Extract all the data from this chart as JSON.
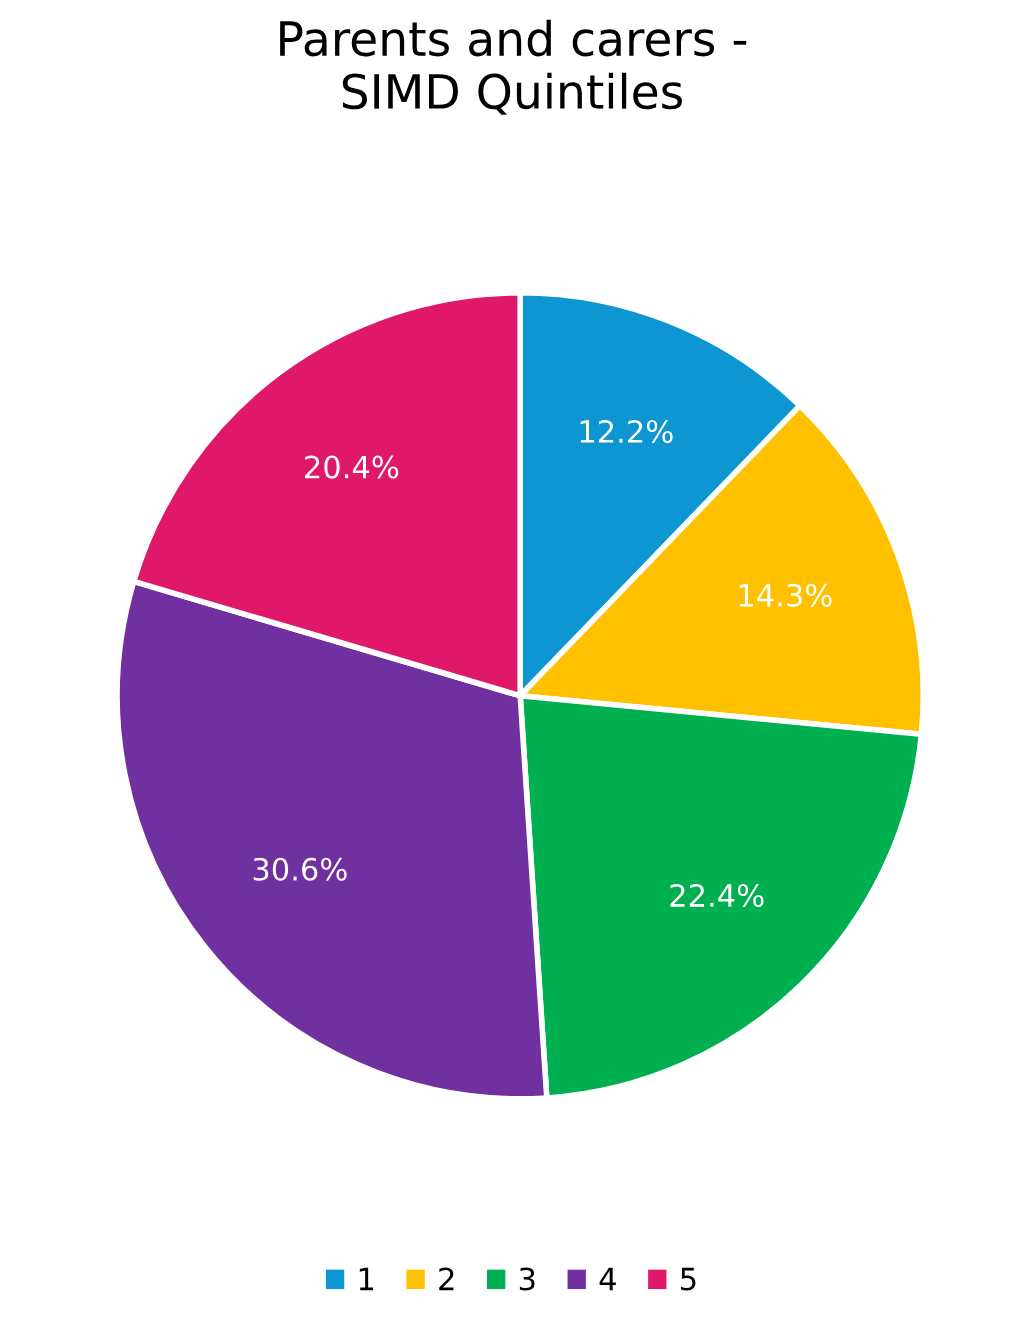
{
  "chart_data": {
    "type": "pie",
    "title": "Parents and carers -\nSIMD Quintiles",
    "categories": [
      "1",
      "2",
      "3",
      "4",
      "5"
    ],
    "values": [
      12.2,
      14.3,
      22.4,
      30.6,
      20.4
    ],
    "value_labels": [
      "12.2%",
      "14.3%",
      "22.4%",
      "30.6%",
      "20.4%"
    ],
    "colors": [
      "#0e96d2",
      "#ffc000",
      "#00b050",
      "#7030a0",
      "#e0186a"
    ],
    "legend": "bottom"
  }
}
